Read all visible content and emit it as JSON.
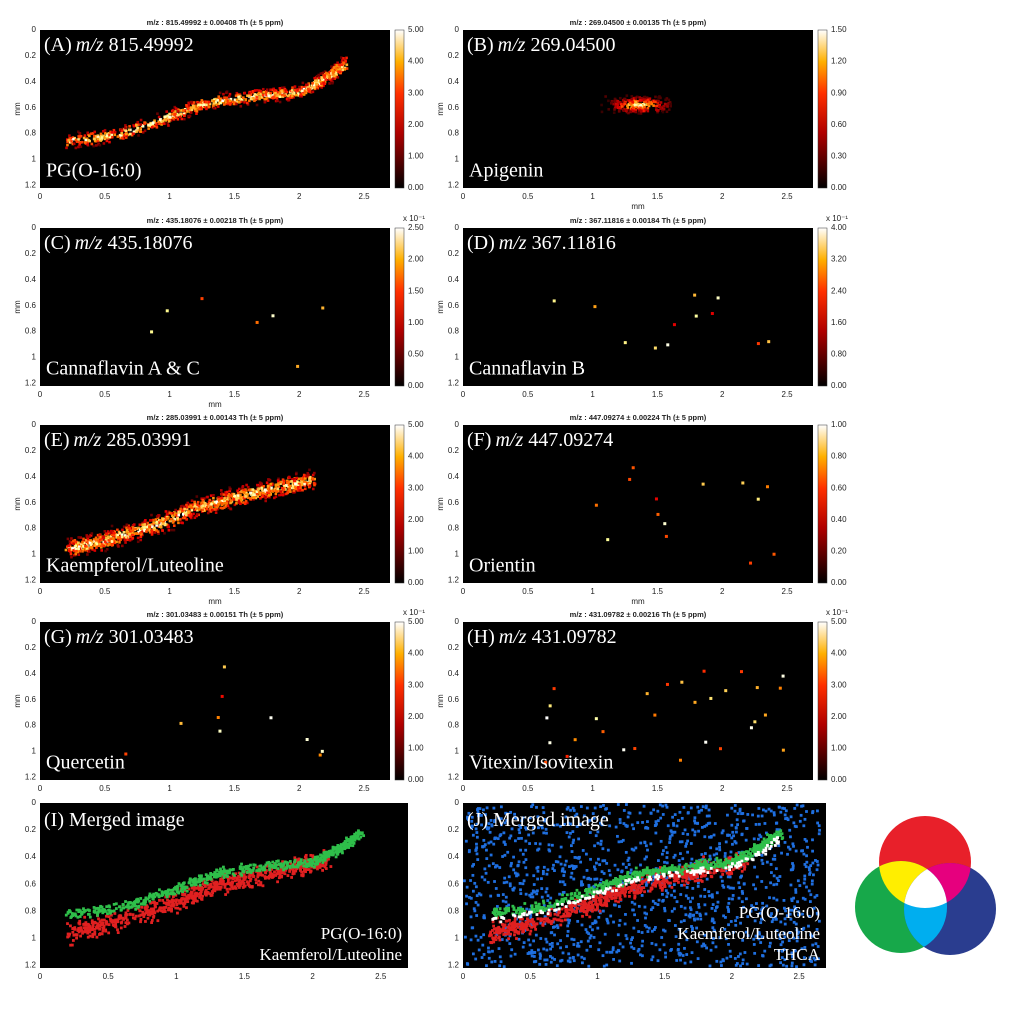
{
  "panels": [
    {
      "title": "m/z : 815.49992 ± 0.00408 Th (± 5 ppm)",
      "tag": "(A)",
      "mz_label": "m/z",
      "mz": "815.49992",
      "compound": "PG(O-16:0)",
      "y_label": "mm",
      "y_ticks": [
        "0",
        "0.2",
        "0.4",
        "0.6",
        "0.8",
        "1",
        "1.2"
      ],
      "x_ticks": [
        "0",
        "0.5",
        "1",
        "1.5",
        "2",
        "2.5"
      ],
      "colorbar_ticks": [
        "0.00",
        "1.00",
        "2.00",
        "3.00",
        "4.00",
        "5.00"
      ]
    },
    {
      "title": "m/z : 269.04500 ± 0.00135 Th (± 5 ppm)",
      "tag": "(B)",
      "mz_label": "m/z",
      "mz": "269.04500",
      "compound": "Apigenin",
      "y_label": "mm",
      "x_label": "mm",
      "y_ticks": [
        "0",
        "0.2",
        "0.4",
        "0.6",
        "0.8",
        "1",
        "1.2"
      ],
      "x_ticks": [
        "0",
        "0.5",
        "1",
        "1.5",
        "2",
        "2.5"
      ],
      "colorbar_ticks": [
        "0.00",
        "0.30",
        "0.60",
        "0.90",
        "1.20",
        "1.50"
      ]
    },
    {
      "title": "m/z : 435.18076 ± 0.00218 Th (± 5 ppm)",
      "tag": "(C)",
      "mz_label": "m/z",
      "mz": "435.18076",
      "compound": "Cannaflavin A & C",
      "y_label": "mm",
      "x_label": "mm",
      "y_ticks": [
        "0",
        "0.2",
        "0.4",
        "0.6",
        "0.8",
        "1",
        "1.2"
      ],
      "x_ticks": [
        "0",
        "0.5",
        "1",
        "1.5",
        "2",
        "2.5"
      ],
      "colorbar_ticks": [
        "0.00",
        "0.50",
        "1.00",
        "1.50",
        "2.00",
        "2.50"
      ],
      "colorbar_multiplier": "x 10⁻¹"
    },
    {
      "title": "m/z : 367.11816 ± 0.00184 Th (± 5 ppm)",
      "tag": "(D)",
      "mz_label": "m/z",
      "mz": "367.11816",
      "compound": "Cannaflavin B",
      "y_label": "mm",
      "y_ticks": [
        "0",
        "0.2",
        "0.4",
        "0.6",
        "0.8",
        "1",
        "1.2"
      ],
      "x_ticks": [
        "0",
        "0.5",
        "1",
        "1.5",
        "2",
        "2.5"
      ],
      "colorbar_ticks": [
        "0.00",
        "0.80",
        "1.60",
        "2.40",
        "3.20",
        "4.00"
      ],
      "colorbar_multiplier": "x 10⁻¹"
    },
    {
      "title": "m/z : 285.03991 ± 0.00143 Th (± 5 ppm)",
      "tag": "(E)",
      "mz_label": "m/z",
      "mz": "285.03991",
      "compound": "Kaempferol/Luteoline",
      "y_label": "mm",
      "x_label": "mm",
      "y_ticks": [
        "0",
        "0.2",
        "0.4",
        "0.6",
        "0.8",
        "1",
        "1.2"
      ],
      "x_ticks": [
        "0",
        "0.5",
        "1",
        "1.5",
        "2",
        "2.5"
      ],
      "colorbar_ticks": [
        "0.00",
        "1.00",
        "2.00",
        "3.00",
        "4.00",
        "5.00"
      ]
    },
    {
      "title": "m/z : 447.09274 ± 0.00224 Th (± 5 ppm)",
      "tag": "(F)",
      "mz_label": "m/z",
      "mz": "447.09274",
      "compound": "Orientin",
      "y_label": "mm",
      "x_label": "mm",
      "y_ticks": [
        "0",
        "0.2",
        "0.4",
        "0.6",
        "0.8",
        "1",
        "1.2"
      ],
      "x_ticks": [
        "0",
        "0.5",
        "1",
        "1.5",
        "2",
        "2.5"
      ],
      "colorbar_ticks": [
        "0.00",
        "0.20",
        "0.40",
        "0.60",
        "0.80",
        "1.00"
      ]
    },
    {
      "title": "m/z : 301.03483 ± 0.00151 Th (± 5 ppm)",
      "tag": "(G)",
      "mz_label": "m/z",
      "mz": "301.03483",
      "compound": "Quercetin",
      "y_label": "mm",
      "y_ticks": [
        "0",
        "0.2",
        "0.4",
        "0.6",
        "0.8",
        "1",
        "1.2"
      ],
      "x_ticks": [
        "0",
        "0.5",
        "1",
        "1.5",
        "2",
        "2.5"
      ],
      "colorbar_ticks": [
        "0.00",
        "1.00",
        "2.00",
        "3.00",
        "4.00",
        "5.00"
      ],
      "colorbar_multiplier": "x 10⁻¹"
    },
    {
      "title": "m/z : 431.09782 ± 0.00216 Th (± 5 ppm)",
      "tag": "(H)",
      "mz_label": "m/z",
      "mz": "431.09782",
      "compound": "Vitexin/Isovitexin",
      "y_label": "mm",
      "y_ticks": [
        "0",
        "0.2",
        "0.4",
        "0.6",
        "0.8",
        "1",
        "1.2"
      ],
      "x_ticks": [
        "0",
        "0.5",
        "1",
        "1.5",
        "2",
        "2.5"
      ],
      "colorbar_ticks": [
        "0.00",
        "1.00",
        "2.00",
        "3.00",
        "4.00",
        "5.00"
      ],
      "colorbar_multiplier": "x 10⁻¹"
    }
  ],
  "merged": [
    {
      "tag": "(I)",
      "heading": "Merged image",
      "y_ticks": [
        "0",
        "0.2",
        "0.4",
        "0.6",
        "0.8",
        "1",
        "1.2"
      ],
      "x_ticks": [
        "0",
        "0.5",
        "1",
        "1.5",
        "2",
        "2.5"
      ],
      "legend": [
        {
          "text": "PG(O-16:0)",
          "color": "#2fbf4a"
        },
        {
          "text": "Kaemferol/Luteoline",
          "color": "#e02020"
        }
      ]
    },
    {
      "tag": "(J)",
      "heading": "Merged image",
      "y_ticks": [
        "0",
        "0.2",
        "0.4",
        "0.6",
        "0.8",
        "1",
        "1.2"
      ],
      "x_ticks": [
        "0",
        "0.5",
        "1",
        "1.5",
        "2",
        "2.5"
      ],
      "legend": [
        {
          "text": "PG(O-16:0)",
          "color": "#2fbf4a"
        },
        {
          "text": "Kaemferol/Luteoline",
          "color": "#e02020"
        },
        {
          "text": "THCA",
          "color": "#1f6fe0"
        }
      ]
    }
  ]
}
